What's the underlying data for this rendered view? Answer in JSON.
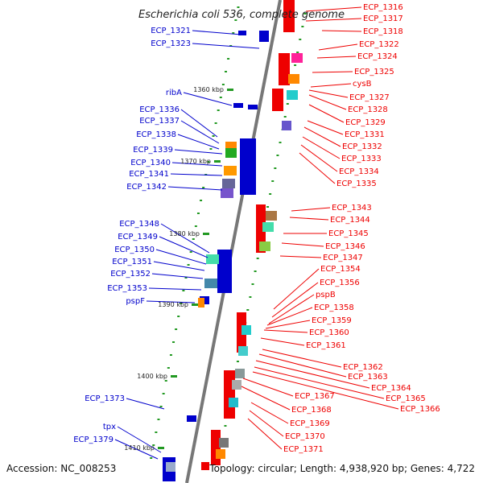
{
  "title": "Escherichia coli 536, complete genome",
  "footer": {
    "accession": "Accession: NC_008253",
    "topology": "Topology: circular; Length: 4,938,920 bp; Genes: 4,722"
  },
  "colors": {
    "left_strand": "#0000cc",
    "right_strand": "#ee0000",
    "backbone": "#777777",
    "tick": "#229922"
  },
  "ticks": [
    "1360 kbp",
    "1370 kbp",
    "1380 kbp",
    "1390 kbp",
    "1400 kbp",
    "1410 kbp"
  ],
  "left_labels": [
    "ECP_1321",
    "ECP_1323",
    "ribA",
    "ECP_1336",
    "ECP_1337",
    "ECP_1338",
    "ECP_1339",
    "ECP_1340",
    "ECP_1341",
    "ECP_1342",
    "ECP_1348",
    "ECP_1349",
    "ECP_1350",
    "ECP_1351",
    "ECP_1352",
    "ECP_1353",
    "pspF",
    "ECP_1373",
    "tpx",
    "ECP_1379"
  ],
  "right_labels": [
    "ECP_1316",
    "ECP_1317",
    "ECP_1318",
    "ECP_1322",
    "ECP_1324",
    "ECP_1325",
    "cysB",
    "ECP_1327",
    "ECP_1328",
    "ECP_1329",
    "ECP_1331",
    "ECP_1332",
    "ECP_1333",
    "ECP_1334",
    "ECP_1335",
    "ECP_1343",
    "ECP_1344",
    "ECP_1345",
    "ECP_1346",
    "ECP_1347",
    "ECP_1354",
    "ECP_1356",
    "pspB",
    "ECP_1358",
    "ECP_1359",
    "ECP_1360",
    "ECP_1361",
    "ECP_1362",
    "ECP_1363",
    "ECP_1364",
    "ECP_1365",
    "ECP_1366",
    "ECP_1367",
    "ECP_1368",
    "ECP_1369",
    "ECP_1370",
    "ECP_1371"
  ]
}
